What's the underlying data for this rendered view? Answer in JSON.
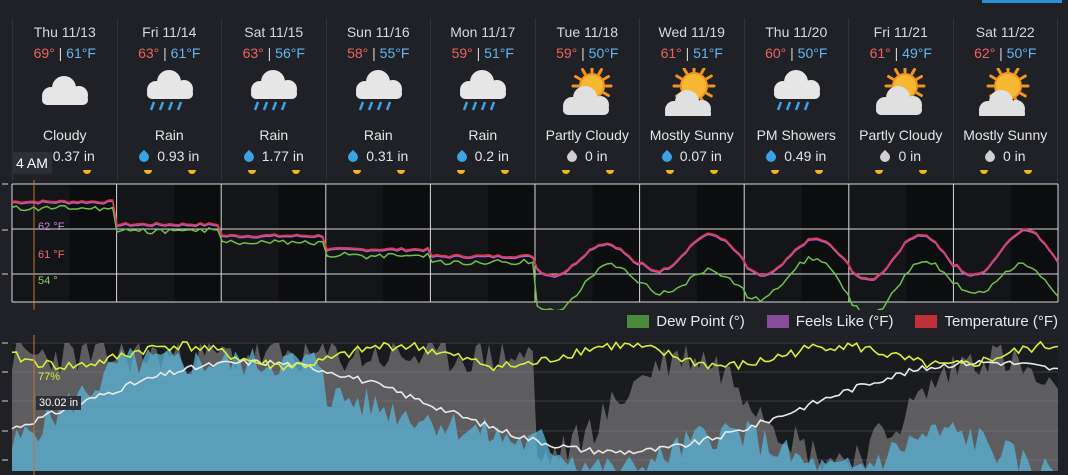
{
  "days": [
    {
      "name": "Thu 11/13",
      "hi": "69°",
      "lo": "61°F",
      "cond": "Cloudy",
      "precip": "0.37 in",
      "icon": "cloudy-icon",
      "drop": "none"
    },
    {
      "name": "Fri 11/14",
      "hi": "63°",
      "lo": "61°F",
      "cond": "Rain",
      "precip": "0.93 in",
      "icon": "rain-icon",
      "drop": "blue"
    },
    {
      "name": "Sat 11/15",
      "hi": "63°",
      "lo": "56°F",
      "cond": "Rain",
      "precip": "1.77 in",
      "icon": "rain-icon",
      "drop": "blue"
    },
    {
      "name": "Sun 11/16",
      "hi": "58°",
      "lo": "55°F",
      "cond": "Rain",
      "precip": "0.31 in",
      "icon": "rain-icon",
      "drop": "blue"
    },
    {
      "name": "Mon 11/17",
      "hi": "59°",
      "lo": "51°F",
      "cond": "Rain",
      "precip": "0.2 in",
      "icon": "rain-icon",
      "drop": "blue"
    },
    {
      "name": "Tue 11/18",
      "hi": "59°",
      "lo": "50°F",
      "cond": "Partly Cloudy",
      "precip": "0 in",
      "icon": "partly-cloudy-icon",
      "drop": "gray"
    },
    {
      "name": "Wed 11/19",
      "hi": "61°",
      "lo": "51°F",
      "cond": "Mostly Sunny",
      "precip": "0.07 in",
      "icon": "mostly-sunny-icon",
      "drop": "blue"
    },
    {
      "name": "Thu 11/20",
      "hi": "60°",
      "lo": "50°F",
      "cond": "PM Showers",
      "precip": "0.49 in",
      "icon": "pm-showers-icon",
      "drop": "blue"
    },
    {
      "name": "Fri 11/21",
      "hi": "61°",
      "lo": "49°F",
      "cond": "Partly Cloudy",
      "precip": "0 in",
      "icon": "partly-cloudy-icon",
      "drop": "gray"
    },
    {
      "name": "Sat 11/22",
      "hi": "62°",
      "lo": "50°F",
      "cond": "Mostly Sunny",
      "precip": "0 in",
      "icon": "mostly-sunny-icon",
      "drop": "gray"
    }
  ],
  "cursor": {
    "time": "4 AM",
    "feels": "62 °F",
    "temp": "61 °F",
    "dew": "54 °",
    "humidity": "77%",
    "pressure": "30.02 in"
  },
  "legend": [
    {
      "label": "Dew Point (°)",
      "color": "#4a8a3c"
    },
    {
      "label": "Feels Like (°F)",
      "color": "#8a4a9a"
    },
    {
      "label": "Temperature (°F)",
      "color": "#c0303a"
    }
  ],
  "colors": {
    "temperature": "#dc3c4a",
    "feels": "#b55cc0",
    "dew": "#6fbf4a",
    "humidity": "#5ab4d8",
    "pressure": "#e8e8e8",
    "cloud": "#8a8a8a",
    "gust": "#d4f03c",
    "hi": "#f06262",
    "lo": "#63b6f2"
  },
  "chart_data": [
    {
      "type": "line",
      "title": "",
      "xlabel": "",
      "ylabel": "",
      "categories": [
        "Thu 11/13",
        "Fri 11/14",
        "Sat 11/15",
        "Sun 11/16",
        "Mon 11/17",
        "Tue 11/18",
        "Wed 11/19",
        "Thu 11/20",
        "Fri 11/21",
        "Sat 11/22"
      ],
      "series": [
        {
          "name": "Temperature (°F)",
          "values": [
            69,
            63,
            63,
            58,
            59,
            59,
            61,
            60,
            61,
            62
          ]
        },
        {
          "name": "Dew Point (°)",
          "values": [
            61,
            61,
            56,
            55,
            51,
            50,
            51,
            50,
            49,
            50
          ]
        }
      ]
    }
  ]
}
